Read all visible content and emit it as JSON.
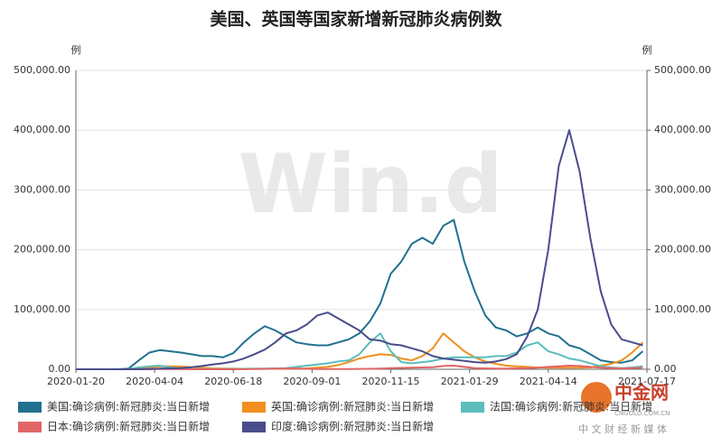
{
  "chart_data": {
    "type": "line",
    "title": "美国、英国等国家新增新冠肺炎病例数",
    "y_label": "例",
    "y2_label": "例",
    "watermark": "Win.d",
    "logo": {
      "name": "中金网",
      "site": "CNGOLD.COM.CN",
      "slogan": "中 文 财 经 新 媒 体"
    },
    "x": [
      "2020-01-20",
      "2020-01-30",
      "2020-02-09",
      "2020-02-19",
      "2020-02-29",
      "2020-03-10",
      "2020-03-20",
      "2020-03-30",
      "2020-04-09",
      "2020-04-19",
      "2020-04-29",
      "2020-05-09",
      "2020-05-19",
      "2020-05-29",
      "2020-06-08",
      "2020-06-18",
      "2020-06-28",
      "2020-07-08",
      "2020-07-18",
      "2020-07-28",
      "2020-08-07",
      "2020-08-17",
      "2020-08-27",
      "2020-09-06",
      "2020-09-16",
      "2020-09-26",
      "2020-10-06",
      "2020-10-16",
      "2020-10-26",
      "2020-11-05",
      "2020-11-15",
      "2020-11-25",
      "2020-12-05",
      "2020-12-15",
      "2020-12-25",
      "2021-01-04",
      "2021-01-14",
      "2021-01-24",
      "2021-02-03",
      "2021-02-13",
      "2021-02-23",
      "2021-03-05",
      "2021-03-15",
      "2021-03-25",
      "2021-04-04",
      "2021-04-14",
      "2021-04-24",
      "2021-05-04",
      "2021-05-14",
      "2021-05-24",
      "2021-06-03",
      "2021-06-13",
      "2021-06-23",
      "2021-07-03",
      "2021-07-13"
    ],
    "xlim": [
      "2020-01-20",
      "2021-07-17"
    ],
    "xticks": [
      "2020-01-20",
      "2020-04-04",
      "2020-06-18",
      "2020-09-01",
      "2020-11-15",
      "2021-01-29",
      "2021-04-14",
      "2021-07-17"
    ],
    "ylim": [
      0,
      500000
    ],
    "yticks": [
      {
        "value": 0,
        "label": "0.00"
      },
      {
        "value": 100000,
        "label": "100,000.00"
      },
      {
        "value": 200000,
        "label": "200,000.00"
      },
      {
        "value": 300000,
        "label": "300,000.00"
      },
      {
        "value": 400000,
        "label": "400,000.00"
      },
      {
        "value": 500000,
        "label": "500,000.00"
      }
    ],
    "y2lim": [
      0,
      500000
    ],
    "y2ticks": [
      {
        "value": 0,
        "label": "0.00"
      },
      {
        "value": 100000,
        "label": "100,000.00"
      },
      {
        "value": 200000,
        "label": "200,000.00"
      },
      {
        "value": 300000,
        "label": "300,000.00"
      },
      {
        "value": 400000,
        "label": "400,000.00"
      },
      {
        "value": 500000,
        "label": "500,000.00"
      }
    ],
    "grid": true,
    "series": [
      {
        "name": "美国:确诊病例:新冠肺炎:当日新增",
        "color": "#21708f",
        "values": [
          0,
          0,
          0,
          0,
          0,
          1000,
          15000,
          28000,
          32000,
          30000,
          28000,
          25000,
          22000,
          22000,
          20000,
          27000,
          45000,
          60000,
          72000,
          65000,
          55000,
          45000,
          42000,
          40000,
          40000,
          45000,
          50000,
          60000,
          80000,
          110000,
          160000,
          180000,
          210000,
          220000,
          210000,
          240000,
          250000,
          180000,
          130000,
          90000,
          70000,
          65000,
          55000,
          60000,
          70000,
          60000,
          55000,
          40000,
          35000,
          25000,
          15000,
          12000,
          11000,
          15000,
          30000
        ]
      },
      {
        "name": "英国:确诊病例:新冠肺炎:当日新增",
        "color": "#f0901f",
        "values": [
          0,
          0,
          0,
          0,
          0,
          0,
          1000,
          3000,
          5000,
          5000,
          4500,
          3500,
          2500,
          1500,
          1200,
          1000,
          800,
          700,
          700,
          800,
          1000,
          1200,
          1500,
          2500,
          4000,
          7000,
          12000,
          18000,
          22000,
          25000,
          24000,
          18000,
          15000,
          22000,
          35000,
          60000,
          45000,
          30000,
          20000,
          13000,
          9000,
          6000,
          5000,
          4000,
          3000,
          2500,
          2500,
          2500,
          2500,
          3000,
          6000,
          9000,
          15000,
          28000,
          45000
        ]
      },
      {
        "name": "法国:确诊病例:新冠肺炎:当日新增",
        "color": "#5cbcbc",
        "values": [
          0,
          0,
          0,
          0,
          0,
          500,
          3000,
          5000,
          6000,
          3000,
          1500,
          800,
          500,
          500,
          500,
          600,
          800,
          1000,
          1000,
          1500,
          2000,
          4000,
          6000,
          8000,
          10000,
          13000,
          15000,
          25000,
          45000,
          60000,
          30000,
          12000,
          10000,
          12000,
          14000,
          18000,
          20000,
          20000,
          20000,
          20000,
          22000,
          22000,
          28000,
          40000,
          45000,
          30000,
          25000,
          18000,
          15000,
          10000,
          5000,
          3000,
          2000,
          3000,
          5000
        ]
      },
      {
        "name": "日本:确诊病例:新冠肺炎:当日新增",
        "color": "#e06666",
        "values": [
          0,
          0,
          0,
          0,
          0,
          50,
          50,
          200,
          500,
          400,
          200,
          50,
          30,
          30,
          40,
          50,
          100,
          300,
          600,
          1200,
          1300,
          1000,
          700,
          500,
          500,
          500,
          500,
          600,
          700,
          1200,
          1800,
          2200,
          2500,
          3000,
          3500,
          5500,
          6000,
          4000,
          2000,
          1500,
          1000,
          1200,
          1500,
          2000,
          2500,
          4000,
          5000,
          6000,
          5500,
          4000,
          2500,
          1800,
          1500,
          2000,
          2500
        ]
      },
      {
        "name": "印度:确诊病例:新冠肺炎:当日新增",
        "color": "#4a4d8c",
        "values": [
          0,
          0,
          0,
          0,
          0,
          0,
          100,
          500,
          1000,
          1500,
          2000,
          3500,
          5500,
          8000,
          10000,
          13000,
          18000,
          25000,
          33000,
          45000,
          60000,
          65000,
          75000,
          90000,
          95000,
          85000,
          75000,
          65000,
          50000,
          48000,
          42000,
          40000,
          35000,
          30000,
          22000,
          18000,
          16000,
          14000,
          12000,
          11000,
          13000,
          17000,
          25000,
          55000,
          100000,
          200000,
          340000,
          400000,
          330000,
          220000,
          130000,
          75000,
          50000,
          45000,
          40000
        ]
      }
    ],
    "legend_position": "bottom"
  }
}
